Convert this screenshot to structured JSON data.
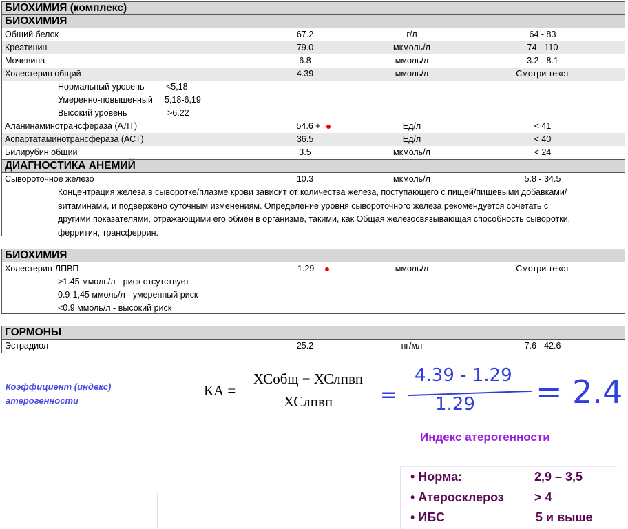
{
  "block1": {
    "title": "БИОХИМИЯ (комплекс)",
    "section": "БИОХИМИЯ",
    "rows": [
      {
        "name": "Общий белок",
        "value": "67.2",
        "unit": "г/л",
        "ref": "64 - 83"
      },
      {
        "name": "Креатинин",
        "value": "79.0",
        "unit": "мкмоль/л",
        "ref": "74 - 110"
      },
      {
        "name": "Мочевина",
        "value": "6.8",
        "unit": "ммоль/л",
        "ref": "3.2 - 8.1"
      },
      {
        "name": "Холестерин общий",
        "value": "4.39",
        "unit": "ммоль/л",
        "ref": "Смотри текст"
      },
      {
        "name": "Аланинаминотрансфераза (АЛТ)",
        "value": "54.6 +",
        "unit": "Ед/л",
        "ref": "< 41"
      },
      {
        "name": "Аспартатаминотрансфераза (АСТ)",
        "value": "36.5",
        "unit": "Ед/л",
        "ref": "< 40"
      },
      {
        "name": "Билирубин общий",
        "value": "3.5",
        "unit": "мкмоль/л",
        "ref": "< 24"
      }
    ],
    "chol_levels": [
      {
        "label": "Нормальный уровень",
        "value": "<5,18"
      },
      {
        "label": "Умеренно-повышенный",
        "value": "5,18-6,19"
      },
      {
        "label": "Высокий уровень",
        "value": ">6.22"
      }
    ],
    "section2": "ДИАГНОСТИКА АНЕМИЙ",
    "iron": {
      "name": "Сывороточное железо",
      "value": "10.3",
      "unit": "мкмоль/л",
      "ref": "5.8 - 34.5"
    },
    "iron_note": "Концентрация железа в сыворотке/плазме крови зависит от количества железа, поступающего с пищей/пищевыми добавками/витаминами, и подвержено суточным изменениям. Определение уровня сывороточного железа рекомендуется сочетать с другими показателями, отражающими его обмен в организме, такими, как Общая железосвязывающая способность сыворотки, ферритин, трансферрин."
  },
  "block2": {
    "section": "БИОХИМИЯ",
    "row": {
      "name": "Холестерин-ЛПВП",
      "value": "1.29 -",
      "unit": "ммоль/л",
      "ref": "Смотри текст"
    },
    "notes": [
      ">1.45 ммоль/л - риск отсутствует",
      "0.9-1,45 ммоль/л - умеренный риск",
      "<0.9 ммоль/л - высокий риск"
    ]
  },
  "block3": {
    "section": "ГОРМОНЫ",
    "row": {
      "name": "Эстрадиол",
      "value": "25.2",
      "unit": "пг/мл",
      "ref": "7.6 - 42.6"
    }
  },
  "formula": {
    "label": "Коэффициент (индекс) атерогенности",
    "lhs": "КА =",
    "numerator": "ХСобщ − ХСлпвп",
    "denominator": "ХСлпвп",
    "hw_numerator": "4.39 - 1.29",
    "hw_denominator": "1.29",
    "hw_result": "= 2.4"
  },
  "index": {
    "title": "Индекс атерогенности",
    "items": [
      {
        "label": "• Норма:",
        "value": "2,9 – 3,5"
      },
      {
        "label": "• Атеросклероз",
        "value": "> 4"
      },
      {
        "label": "• ИБС",
        "value": "5 и выше"
      }
    ]
  },
  "colors": {
    "abnormal_dot": "#e00000",
    "label_blue": "#4a4adf",
    "handwriting": "#2f3fe0",
    "index_title": "#9b1fe0",
    "index_items": "#5a0a55"
  }
}
